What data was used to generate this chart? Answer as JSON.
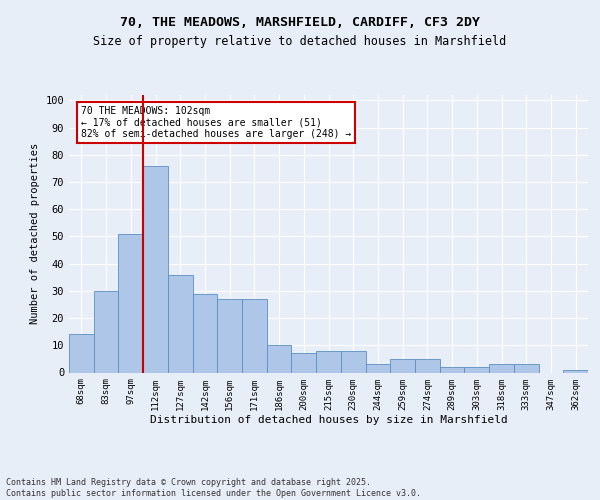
{
  "title_line1": "70, THE MEADOWS, MARSHFIELD, CARDIFF, CF3 2DY",
  "title_line2": "Size of property relative to detached houses in Marshfield",
  "xlabel": "Distribution of detached houses by size in Marshfield",
  "ylabel": "Number of detached properties",
  "categories": [
    "68sqm",
    "83sqm",
    "97sqm",
    "112sqm",
    "127sqm",
    "142sqm",
    "156sqm",
    "171sqm",
    "186sqm",
    "200sqm",
    "215sqm",
    "230sqm",
    "244sqm",
    "259sqm",
    "274sqm",
    "289sqm",
    "303sqm",
    "318sqm",
    "333sqm",
    "347sqm",
    "362sqm"
  ],
  "values": [
    14,
    30,
    51,
    76,
    36,
    29,
    27,
    27,
    10,
    7,
    8,
    8,
    3,
    5,
    5,
    2,
    2,
    3,
    3,
    0,
    1
  ],
  "bar_color": "#aec6e8",
  "bar_edge_color": "#5a8fc2",
  "background_color": "#e8eef8",
  "grid_color": "#ffffff",
  "vline_x_index": 2,
  "vline_color": "#cc0000",
  "annotation_text": "70 THE MEADOWS: 102sqm\n← 17% of detached houses are smaller (51)\n82% of semi-detached houses are larger (248) →",
  "annotation_box_color": "#ffffff",
  "annotation_box_edge_color": "#cc0000",
  "footer_text": "Contains HM Land Registry data © Crown copyright and database right 2025.\nContains public sector information licensed under the Open Government Licence v3.0.",
  "ylim": [
    0,
    102
  ],
  "yticks": [
    0,
    10,
    20,
    30,
    40,
    50,
    60,
    70,
    80,
    90,
    100
  ]
}
